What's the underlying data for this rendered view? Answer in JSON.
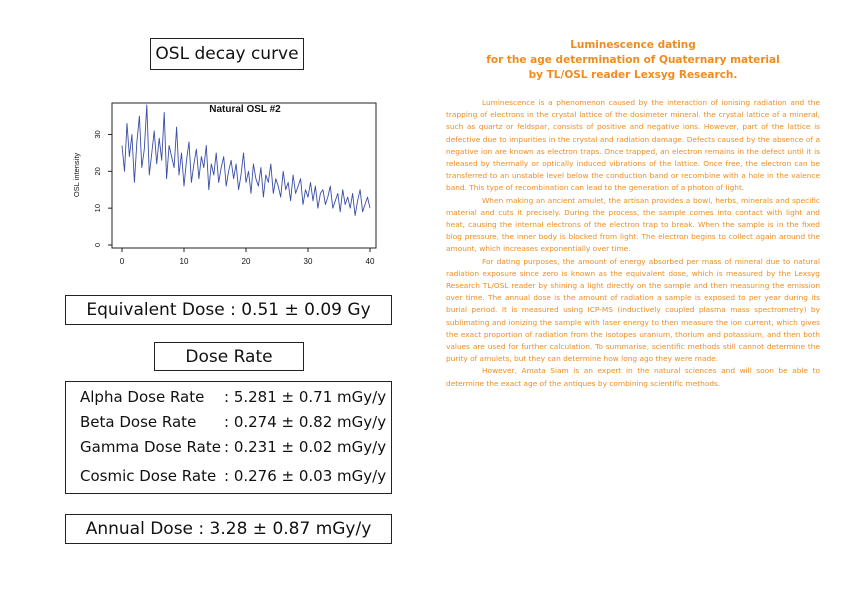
{
  "left_panel": {
    "chart_section_title": "OSL decay curve",
    "equivalent_dose": "Equivalent Dose : 0.51 ± 0.09 Gy",
    "dose_rate_title": "Dose Rate",
    "dose_rates": [
      {
        "label": "Alpha Dose Rate",
        "value": ": 5.281 ± 0.71 mGy/y"
      },
      {
        "label": "Beta Dose Rate",
        "value": ": 0.274 ± 0.82 mGy/y"
      },
      {
        "label": "Gamma Dose Rate",
        "value": ": 0.231 ± 0.02 mGy/y"
      },
      {
        "label": "Cosmic Dose Rate",
        "value": ": 0.276 ± 0.03 mGy/y"
      }
    ],
    "annual_dose": "Annual Dose : 3.28 ± 0.87 mGy/y"
  },
  "chart_data": {
    "type": "line",
    "title": "Natural OSL #2",
    "xlabel": "",
    "ylabel": "OSL intensity",
    "xlim": [
      0,
      40
    ],
    "ylim": [
      0,
      38
    ],
    "xticks": [
      "0",
      "10",
      "20",
      "30",
      "40"
    ],
    "yticks": [
      "0",
      "10",
      "20",
      "30"
    ],
    "grid": false,
    "line_color": "#3b4ea6",
    "x": [
      0,
      0.4,
      0.8,
      1.2,
      1.6,
      2,
      2.4,
      2.8,
      3.2,
      3.6,
      4,
      4.4,
      4.8,
      5.2,
      5.6,
      6,
      6.4,
      6.8,
      7.2,
      7.6,
      8,
      8.4,
      8.8,
      9.2,
      9.6,
      10,
      10.4,
      10.8,
      11.2,
      11.6,
      12,
      12.4,
      12.8,
      13.2,
      13.6,
      14,
      14.4,
      14.8,
      15.2,
      15.6,
      16,
      16.4,
      16.8,
      17.2,
      17.6,
      18,
      18.4,
      18.8,
      19.2,
      19.6,
      20,
      20.4,
      20.8,
      21.2,
      21.6,
      22,
      22.4,
      22.8,
      23.2,
      23.6,
      24,
      24.4,
      24.8,
      25.2,
      25.6,
      26,
      26.4,
      26.8,
      27.2,
      27.6,
      28,
      28.4,
      28.8,
      29.2,
      29.6,
      30,
      30.4,
      30.8,
      31.2,
      31.6,
      32,
      32.4,
      32.8,
      33.2,
      33.6,
      34,
      34.4,
      34.8,
      35.2,
      35.6,
      36,
      36.4,
      36.8,
      37.2,
      37.6,
      38,
      38.4,
      38.8,
      39.2,
      39.6,
      40
    ],
    "values": [
      27,
      20,
      33,
      24,
      30,
      17,
      28,
      35,
      21,
      26,
      38,
      19,
      25,
      31,
      22,
      29,
      23,
      36,
      18,
      27,
      24,
      21,
      32,
      19,
      25,
      16,
      23,
      28,
      17,
      22,
      26,
      18,
      24,
      21,
      27,
      15,
      22,
      19,
      25,
      17,
      21,
      24,
      16,
      20,
      23,
      18,
      22,
      15,
      19,
      25,
      17,
      20,
      14,
      22,
      18,
      16,
      21,
      13,
      19,
      17,
      22,
      14,
      18,
      16,
      13,
      20,
      15,
      17,
      12,
      19,
      14,
      16,
      18,
      11,
      15,
      13,
      17,
      12,
      16,
      10,
      14,
      15,
      11,
      13,
      16,
      10,
      12,
      14,
      9,
      15,
      11,
      13,
      10,
      14,
      8,
      12,
      15,
      9,
      11,
      13,
      10
    ]
  },
  "article": {
    "title_lines": [
      "Luminescence dating",
      "for the age determination of Quaternary material",
      "by TL/OSL reader Lexsyg Research."
    ],
    "paragraphs": [
      "Luminescence is a phenomenon caused by the interaction of ionising radiation and the trapping of electrons in the crystal lattice of the dosimeter mineral. the crystal lattice of a mineral, such as quartz or feldspar, consists of positive and negative ions. However, part of the lattice is defective due to impurities in the crystal and radiation damage. Defects caused by the absence of a negative ion are known as electron traps. Once trapped, an electron remains in the defect until it is released by thermally or optically induced vibrations of the lattice. Once free, the electron can be transferred to an unstable level below the conduction band or recombine with a hole in the valence band. This type of recombination can lead to the generation of a photon of light.",
      "When making an ancient amulet, the artisan provides a bowl, herbs, minerals and specific material and cuts it precisely. During the process, the sample comes into contact with light and heat, causing the internal electrons of the electron trap to break. When the sample is in the fixed blog pressure, the inner body is blocked from light. The electron begins to collect again around the amount, which increases exponentially over time.",
      "For dating purposes, the amount of energy absorbed per mass of mineral due to natural radiation exposure since zero is known as the equivalent dose, which is measured by the Lexsyg Research TL/OSL reader by shining a light directly on the sample and then measuring the emission over time. The annual dose is the amount of radiation a sample is exposed to per year during its burial period. It is measured using ICP-MS (inductively coupled plasma mass spectrometry) by sublimating and ionizing the sample with laser energy to then measure the ion current, which gives the exact proportion of radiation from the isotopes uranium, thorium and potassium, and then both values are used for further calculation. To summarise, scientific methods still cannot determine the purity of amulets, but they can determine how long ago they were made.",
      "However, Amata Siam is an expert in the natural sciences and will soon be able to determine the exact age of the antiques by combining scientific methods."
    ]
  }
}
